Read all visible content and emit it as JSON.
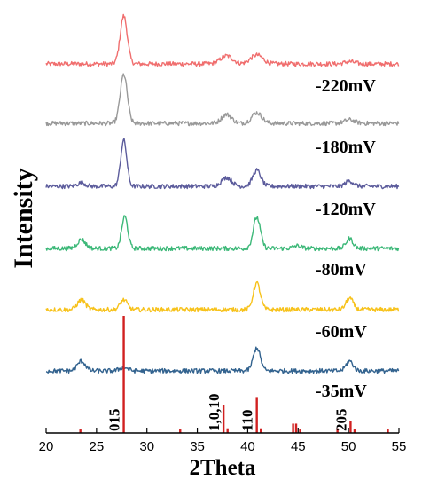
{
  "chart_data": {
    "type": "line",
    "xlabel": "2Theta",
    "ylabel": "Intensity",
    "xlim": [
      20,
      55
    ],
    "xticks": [
      20,
      25,
      30,
      35,
      40,
      45,
      50,
      55
    ],
    "y_ticks_shown": false,
    "series": [
      {
        "name": "",
        "color": "#f06e6e",
        "baseline": 0.5,
        "peaks": [
          [
            27.7,
            5.4,
            0.35
          ],
          [
            37.9,
            0.9,
            0.6
          ],
          [
            40.9,
            1.0,
            0.6
          ],
          [
            50.1,
            0.25,
            0.5
          ]
        ]
      },
      {
        "name": "-220mV",
        "color": "#999999",
        "baseline": 0.5,
        "peaks": [
          [
            27.7,
            5.5,
            0.35
          ],
          [
            37.9,
            1.0,
            0.5
          ],
          [
            40.9,
            1.2,
            0.5
          ],
          [
            50.1,
            0.4,
            0.5
          ]
        ]
      },
      {
        "name": "-180mV",
        "color": "#5c5c9c",
        "baseline": 0.5,
        "peaks": [
          [
            23.5,
            0.4,
            0.4
          ],
          [
            27.7,
            5.2,
            0.3
          ],
          [
            37.9,
            1.0,
            0.5
          ],
          [
            40.9,
            1.8,
            0.4
          ],
          [
            50.1,
            0.6,
            0.4
          ]
        ]
      },
      {
        "name": "-120mV",
        "color": "#3cb878",
        "baseline": 0.5,
        "peaks": [
          [
            23.5,
            1.0,
            0.4
          ],
          [
            27.8,
            3.6,
            0.3
          ],
          [
            40.9,
            3.5,
            0.35
          ],
          [
            44.9,
            0.3,
            0.4
          ],
          [
            50.1,
            1.1,
            0.35
          ]
        ]
      },
      {
        "name": "-80mV",
        "color": "#f7c21b",
        "baseline": 0.5,
        "peaks": [
          [
            23.5,
            1.1,
            0.4
          ],
          [
            27.7,
            1.1,
            0.35
          ],
          [
            40.9,
            3.0,
            0.35
          ],
          [
            50.1,
            1.3,
            0.35
          ]
        ]
      },
      {
        "name": "-60mV",
        "color": "#33638f",
        "baseline": 0.5,
        "peaks": [
          [
            23.5,
            1.1,
            0.4
          ],
          [
            27.7,
            0.4,
            0.4
          ],
          [
            40.9,
            2.6,
            0.35
          ],
          [
            50.1,
            1.1,
            0.35
          ]
        ]
      },
      {
        "name": "-35mV",
        "color": "",
        "baseline": 0,
        "peaks": []
      }
    ],
    "reference": {
      "color": "#d12020",
      "lines": [
        {
          "x": 23.4,
          "h": 3
        },
        {
          "x": 27.7,
          "h": 100
        },
        {
          "x": 33.3,
          "h": 3
        },
        {
          "x": 37.6,
          "h": 24
        },
        {
          "x": 38.0,
          "h": 4
        },
        {
          "x": 40.9,
          "h": 30
        },
        {
          "x": 41.3,
          "h": 4
        },
        {
          "x": 44.5,
          "h": 8
        },
        {
          "x": 44.8,
          "h": 8
        },
        {
          "x": 45.2,
          "h": 3
        },
        {
          "x": 48.9,
          "h": 4
        },
        {
          "x": 50.2,
          "h": 10
        },
        {
          "x": 50.6,
          "h": 3
        },
        {
          "x": 53.9,
          "h": 3
        }
      ],
      "labels": [
        {
          "text": "015",
          "x": 27.7
        },
        {
          "text": "1,0,10",
          "x": 37.6
        },
        {
          "text": "110",
          "x": 40.9
        },
        {
          "text": "205",
          "x": 50.2
        }
      ]
    }
  }
}
